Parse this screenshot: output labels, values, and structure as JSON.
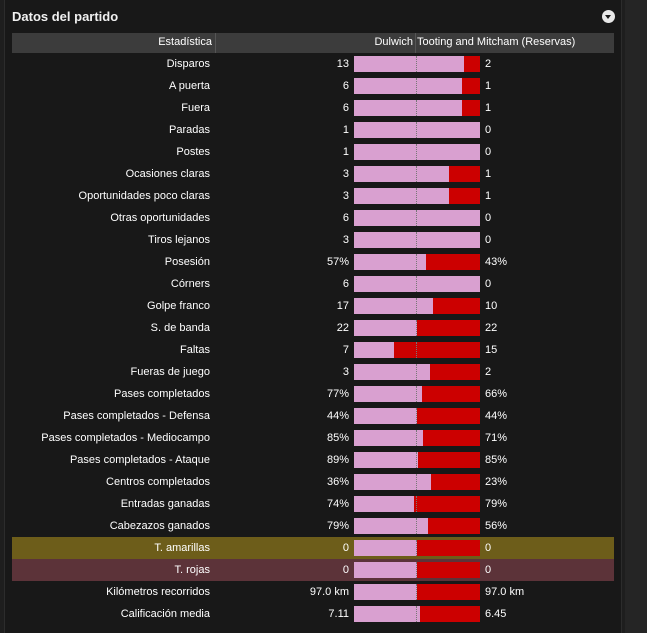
{
  "panel": {
    "title": "Datos del partido"
  },
  "colors": {
    "home_bar": "#d9a0d0",
    "away_bar": "#cc0000",
    "yellow_row": "#6d5d1a",
    "red_row": "#5c3339"
  },
  "columns": {
    "stat": "Estadística",
    "home": "Dulwich",
    "away": "Tooting and Mitcham (Reservas)"
  },
  "rows": [
    {
      "label": "Disparos",
      "home": "13",
      "away": "2",
      "share": 0.87
    },
    {
      "label": "A puerta",
      "home": "6",
      "away": "1",
      "share": 0.86
    },
    {
      "label": "Fuera",
      "home": "6",
      "away": "1",
      "share": 0.86
    },
    {
      "label": "Paradas",
      "home": "1",
      "away": "0",
      "share": 1.0
    },
    {
      "label": "Postes",
      "home": "1",
      "away": "0",
      "share": 1.0
    },
    {
      "label": "Ocasiones claras",
      "home": "3",
      "away": "1",
      "share": 0.75
    },
    {
      "label": "Oportunidades poco claras",
      "home": "3",
      "away": "1",
      "share": 0.75
    },
    {
      "label": "Otras oportunidades",
      "home": "6",
      "away": "0",
      "share": 1.0
    },
    {
      "label": "Tiros lejanos",
      "home": "3",
      "away": "0",
      "share": 1.0
    },
    {
      "label": "Posesión",
      "home": "57%",
      "away": "43%",
      "share": 0.57
    },
    {
      "label": "Córners",
      "home": "6",
      "away": "0",
      "share": 1.0
    },
    {
      "label": "Golpe franco",
      "home": "17",
      "away": "10",
      "share": 0.63
    },
    {
      "label": "S. de banda",
      "home": "22",
      "away": "22",
      "share": 0.5
    },
    {
      "label": "Faltas",
      "home": "7",
      "away": "15",
      "share": 0.32
    },
    {
      "label": "Fueras de juego",
      "home": "3",
      "away": "2",
      "share": 0.6
    },
    {
      "label": "Pases completados",
      "home": "77%",
      "away": "66%",
      "share": 0.54
    },
    {
      "label": "Pases completados - Defensa",
      "home": "44%",
      "away": "44%",
      "share": 0.5
    },
    {
      "label": "Pases completados - Mediocampo",
      "home": "85%",
      "away": "71%",
      "share": 0.545
    },
    {
      "label": "Pases completados - Ataque",
      "home": "89%",
      "away": "85%",
      "share": 0.51
    },
    {
      "label": "Centros completados",
      "home": "36%",
      "away": "23%",
      "share": 0.61
    },
    {
      "label": "Entradas ganadas",
      "home": "74%",
      "away": "79%",
      "share": 0.48
    },
    {
      "label": "Cabezazos ganados",
      "home": "79%",
      "away": "56%",
      "share": 0.585
    },
    {
      "label": "T. amarillas",
      "home": "0",
      "away": "0",
      "share": 0.5,
      "highlight": "yellow"
    },
    {
      "label": "T. rojas",
      "home": "0",
      "away": "0",
      "share": 0.5,
      "highlight": "red"
    },
    {
      "label": "Kilómetros recorridos",
      "home": "97.0 km",
      "away": "97.0 km",
      "share": 0.5
    },
    {
      "label": "Calificación media",
      "home": "7.11",
      "away": "6.45",
      "share": 0.52
    }
  ]
}
